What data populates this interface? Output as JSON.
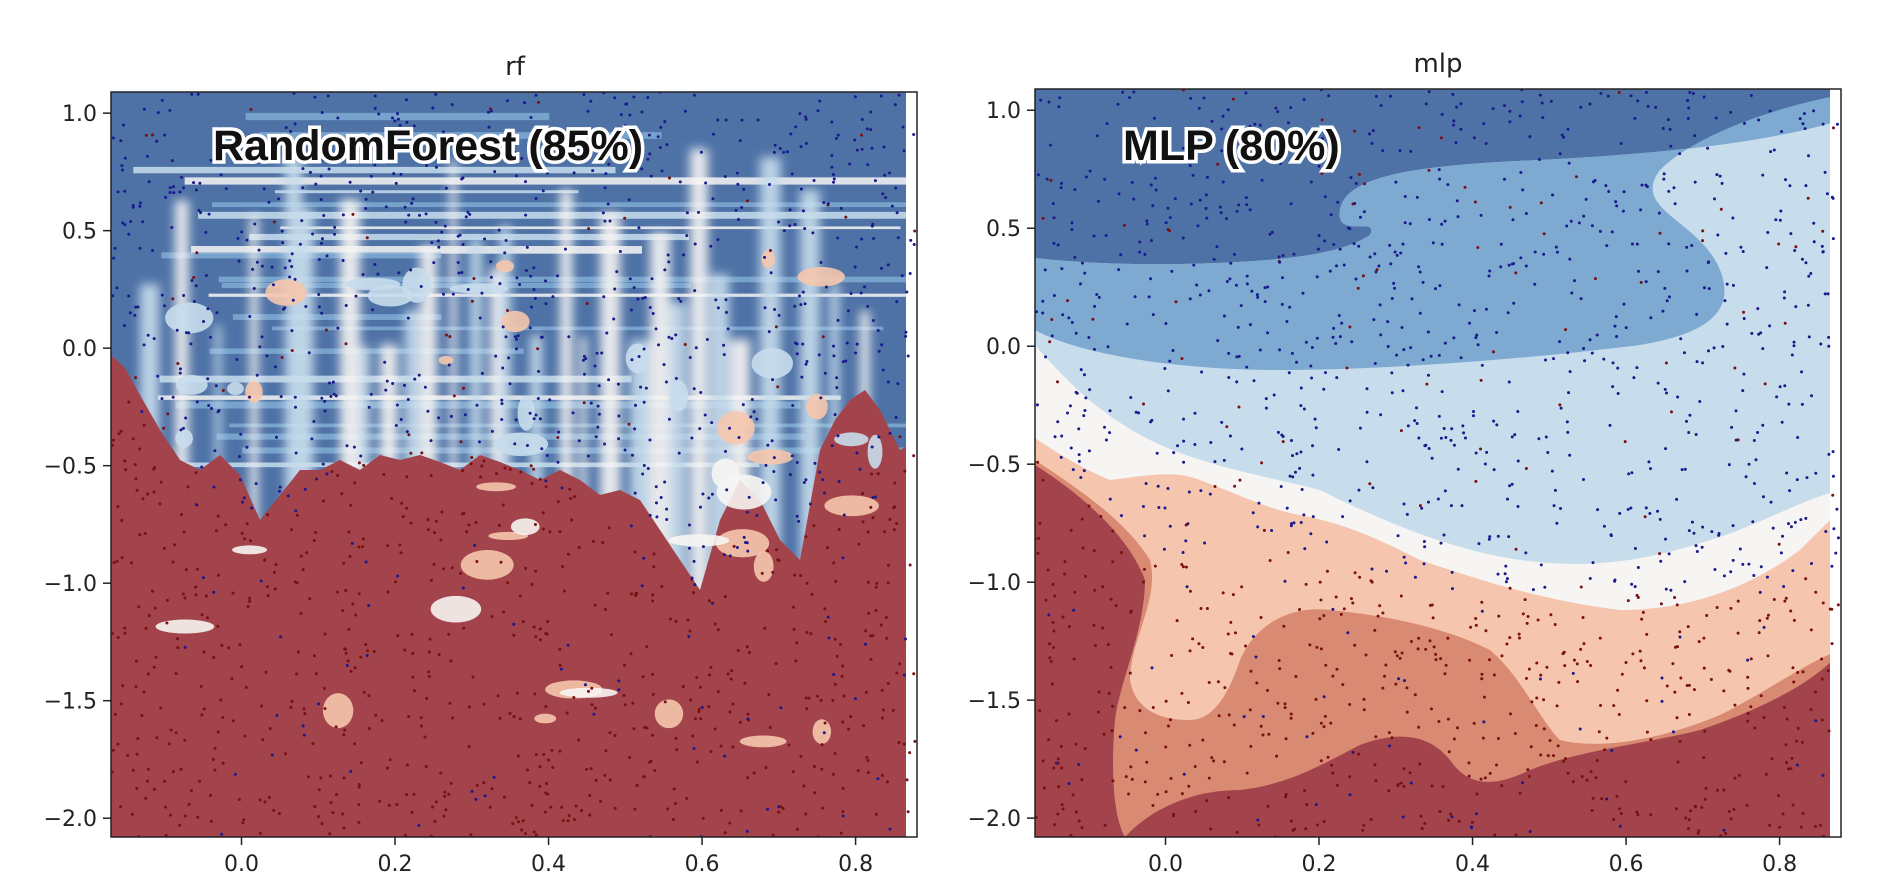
{
  "figure": {
    "background": "#ffffff"
  },
  "colors": {
    "red_dark": "#a3434c",
    "red_mid": "#d98a73",
    "red_light": "#f5c6ad",
    "neutral": "#f7f5f3",
    "blue_light": "#c8ddec",
    "blue_mid": "#7eaad2",
    "blue_dark": "#4e72a6",
    "point_blue": "#1a1a8c",
    "point_red": "#7a1010"
  },
  "chart_data": [
    {
      "type": "contour",
      "title": "rf",
      "annotation": "RandomForest (85%)",
      "xlim": [
        -0.17,
        0.88
      ],
      "ylim": [
        -2.08,
        1.09
      ],
      "xticks": [
        0.0,
        0.2,
        0.4,
        0.6,
        0.8
      ],
      "xtick_labels": [
        "0.0",
        "0.2",
        "0.4",
        "0.6",
        "0.8"
      ],
      "yticks": [
        1.0,
        0.5,
        0.0,
        -0.5,
        -1.0,
        -1.5,
        -2.0
      ],
      "ytick_labels": [
        "1.0",
        "0.5",
        "0.0",
        "−0.5",
        "−1.0",
        "−1.5",
        "−2.0"
      ],
      "legend": "none",
      "classes": [
        "blue",
        "red"
      ],
      "decision_boundary_y_at_x": [
        [
          -0.17,
          -0.05
        ],
        [
          0.0,
          -0.75
        ],
        [
          0.2,
          -0.4
        ],
        [
          0.4,
          -0.5
        ],
        [
          0.6,
          -1.0
        ],
        [
          0.8,
          -0.6
        ],
        [
          0.87,
          -0.3
        ]
      ]
    },
    {
      "type": "contour",
      "title": "mlp",
      "annotation": "MLP (80%)",
      "xlim": [
        -0.17,
        0.88
      ],
      "ylim": [
        -2.08,
        1.09
      ],
      "xticks": [
        0.0,
        0.2,
        0.4,
        0.6,
        0.8
      ],
      "xtick_labels": [
        "0.0",
        "0.2",
        "0.4",
        "0.6",
        "0.8"
      ],
      "yticks": [
        1.0,
        0.5,
        0.0,
        -0.5,
        -1.0,
        -1.5,
        -2.0
      ],
      "ytick_labels": [
        "1.0",
        "0.5",
        "0.0",
        "−0.5",
        "−1.0",
        "−1.5",
        "−2.0"
      ],
      "legend": "none",
      "classes": [
        "blue",
        "red"
      ],
      "decision_boundary_y_at_x": [
        [
          -0.17,
          -0.5
        ],
        [
          0.0,
          -0.9
        ],
        [
          0.2,
          -0.9
        ],
        [
          0.4,
          -1.05
        ],
        [
          0.6,
          -1.05
        ],
        [
          0.8,
          -1.05
        ],
        [
          0.87,
          -0.9
        ]
      ]
    }
  ]
}
